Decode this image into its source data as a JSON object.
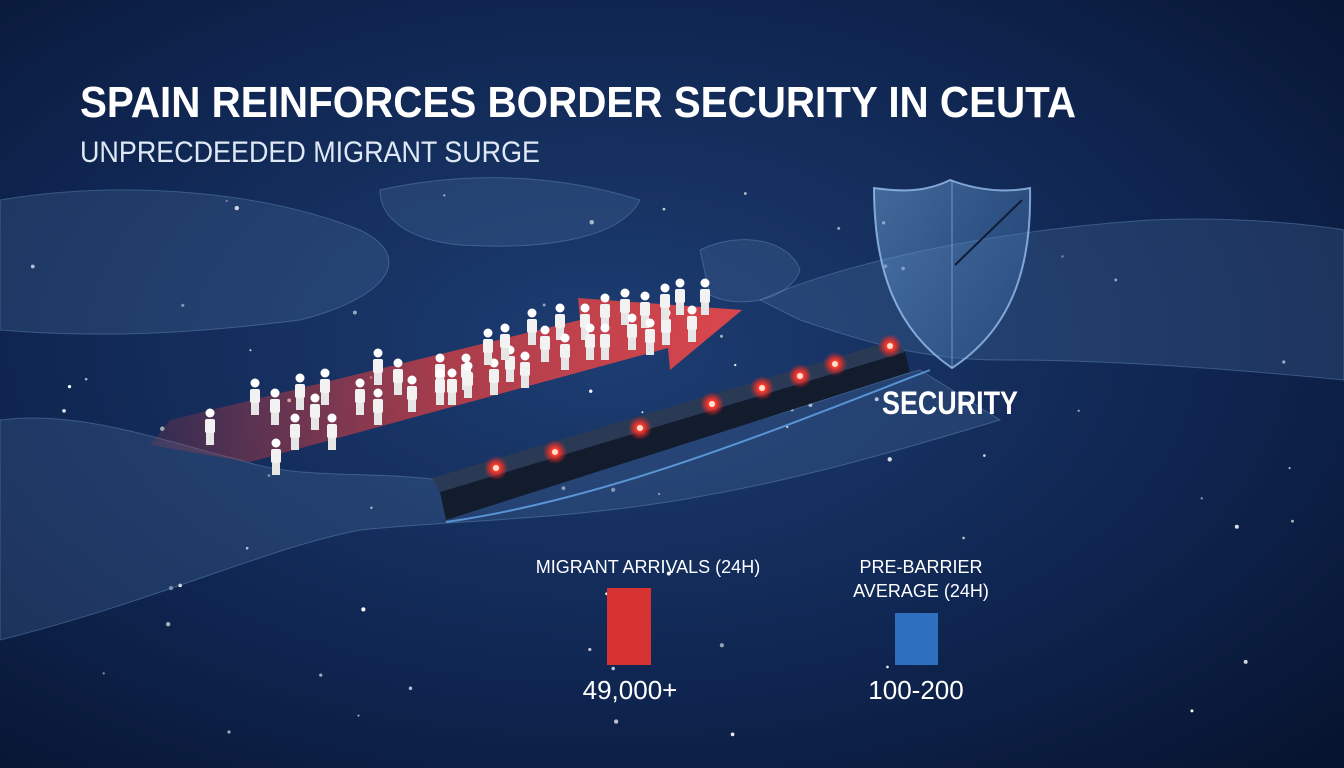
{
  "header": {
    "title": "SPAIN REINFORCES BORDER SECURITY IN CEUTA",
    "subtitle": "UNPRECDEEDED MIGRANT SURGE"
  },
  "shield_label": "SECURITY",
  "stats": [
    {
      "label_lines": [
        "MIGRANT ARRIVALS (24H)"
      ],
      "value": "49,000+"
    },
    {
      "label_lines": [
        "PRE-BARRIER",
        "AVERAGE (24H)"
      ],
      "value": "100-200"
    }
  ]
}
